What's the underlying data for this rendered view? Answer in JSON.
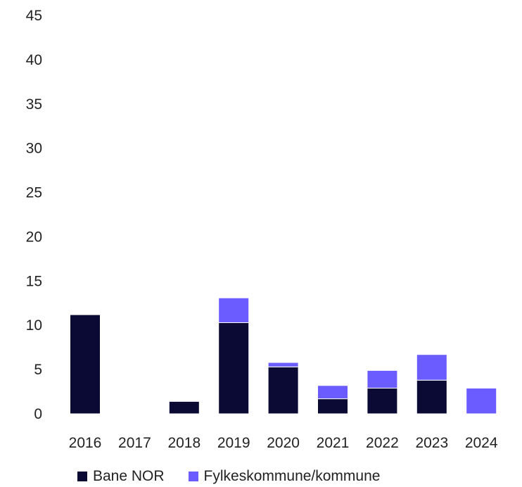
{
  "chart_data": {
    "type": "bar",
    "stacked": true,
    "categories": [
      "2016",
      "2017",
      "2018",
      "2019",
      "2020",
      "2021",
      "2022",
      "2023",
      "2024"
    ],
    "series": [
      {
        "name": "Bane NOR",
        "color": "#0a0a35",
        "values": [
          11.2,
          0,
          1.4,
          10.3,
          5.3,
          1.7,
          2.9,
          3.8,
          0
        ]
      },
      {
        "name": "Fylkeskommune/kommune",
        "color": "#6a5cff",
        "values": [
          0,
          0,
          0,
          2.8,
          0.5,
          1.5,
          2.0,
          2.9,
          2.9
        ]
      }
    ],
    "ylim": [
      0,
      45
    ],
    "yticks": [
      0,
      5,
      10,
      15,
      20,
      25,
      30,
      35,
      40,
      45
    ],
    "grid": false,
    "legend_position": "bottom"
  }
}
